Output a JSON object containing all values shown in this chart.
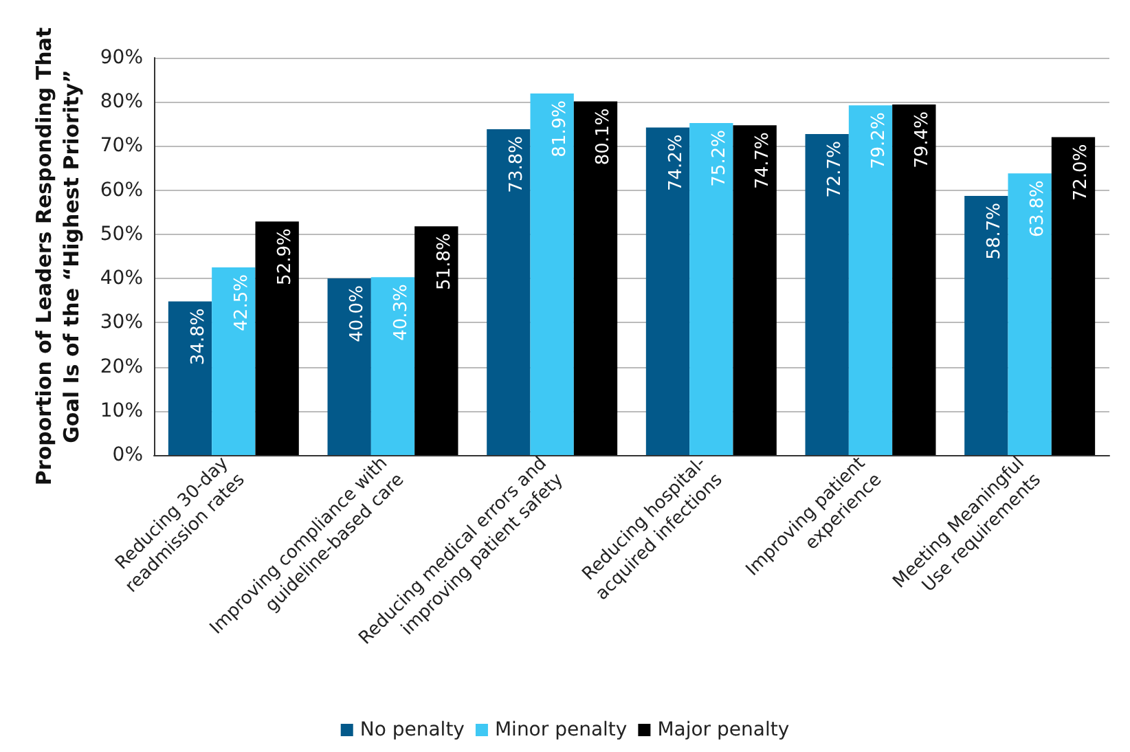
{
  "chart_data": {
    "type": "bar",
    "ylabel": "Proportion of Leaders Responding That\nGoal Is of the “Highest Priority”",
    "categories": [
      "Reducing 30-day\nreadmission rates",
      "Improving compliance with\nguideline-based care",
      "Reducing medical errors and\nimproving patient safety",
      "Reducing hospital-\nacquired infections",
      "Improving patient\nexperience",
      "Meeting Meaningful\nUse requirements"
    ],
    "series": [
      {
        "name": "No penalty",
        "color": "#03598a",
        "values": [
          34.8,
          40.0,
          73.8,
          74.2,
          72.7,
          58.7
        ],
        "value_labels": [
          "34.8%",
          "40.0%",
          "73.8%",
          "74.2%",
          "72.7%",
          "58.7%"
        ]
      },
      {
        "name": "Minor penalty",
        "color": "#3fc8f4",
        "values": [
          42.5,
          40.3,
          81.9,
          75.2,
          79.2,
          63.8
        ],
        "value_labels": [
          "42.5%",
          "40.3%",
          "81.9%",
          "75.2%",
          "79.2%",
          "63.8%"
        ]
      },
      {
        "name": "Major penalty",
        "color": "#000000",
        "values": [
          52.9,
          51.8,
          80.1,
          74.7,
          79.4,
          72.0
        ],
        "value_labels": [
          "52.9%",
          "51.8%",
          "80.1%",
          "74.7%",
          "79.4%",
          "72.0%"
        ]
      }
    ],
    "ylim": [
      0,
      90
    ],
    "yticks": [
      {
        "value": 0,
        "label": "0%"
      },
      {
        "value": 10,
        "label": "10%"
      },
      {
        "value": 20,
        "label": "20%"
      },
      {
        "value": 30,
        "label": "30%"
      },
      {
        "value": 40,
        "label": "40%"
      },
      {
        "value": 50,
        "label": "50%"
      },
      {
        "value": 60,
        "label": "60%"
      },
      {
        "value": 70,
        "label": "70%"
      },
      {
        "value": 80,
        "label": "80%"
      },
      {
        "value": 90,
        "label": "90%"
      }
    ],
    "grid": "y",
    "legend": "bottom"
  }
}
